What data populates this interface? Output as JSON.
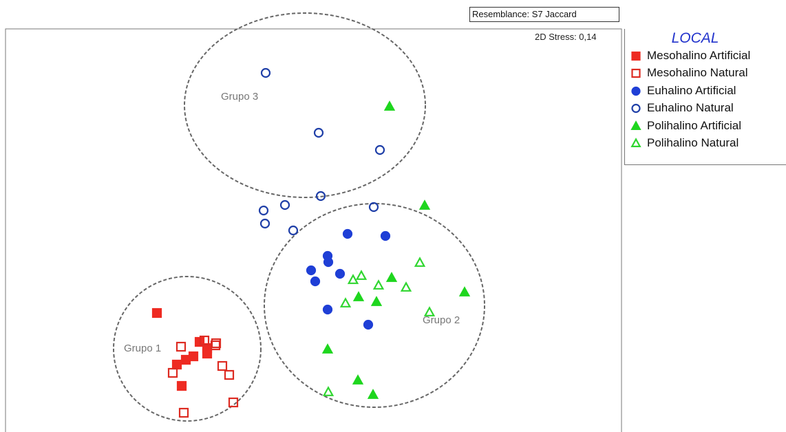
{
  "header": {
    "resemblance": "Resemblance: S7 Jaccard",
    "stress": "2D Stress: 0,14"
  },
  "legend": {
    "title": "LOCAL",
    "items": [
      {
        "label": "Mesohalino Artificial",
        "shape": "square",
        "filled": true,
        "color": "#ee2b22",
        "icon": "filled-square-icon"
      },
      {
        "label": "Mesohalino Natural",
        "shape": "square",
        "filled": false,
        "color": "#dd2b22",
        "icon": "open-square-icon"
      },
      {
        "label": "Euhalino Artificial",
        "shape": "circle",
        "filled": true,
        "color": "#1f3fd6",
        "icon": "filled-circle-icon"
      },
      {
        "label": "Euhalino Natural",
        "shape": "circle",
        "filled": false,
        "color": "#1f3fa8",
        "icon": "open-circle-icon"
      },
      {
        "label": "Polihalino Artificial",
        "shape": "triangle",
        "filled": true,
        "color": "#1ed61e",
        "icon": "filled-triangle-icon"
      },
      {
        "label": "Polihalino Natural",
        "shape": "triangle",
        "filled": false,
        "color": "#2fd62f",
        "icon": "open-triangle-icon"
      }
    ]
  },
  "chart_data": {
    "type": "scatter",
    "title": "",
    "xlabel": "",
    "ylabel": "",
    "grid": false,
    "legend_position": "right",
    "xlim": [
      0,
      890
    ],
    "ylim": [
      0,
      585
    ],
    "groups": [
      {
        "label": "Grupo 1",
        "center": [
          272,
          93
        ],
        "radii": [
          107,
          105
        ]
      },
      {
        "label": "Grupo 2",
        "center": [
          544,
          156
        ],
        "radii": [
          160,
          148
        ]
      },
      {
        "label": "Grupo 3",
        "center": [
          443,
          447
        ],
        "radii": [
          175,
          134
        ]
      }
    ],
    "series": [
      {
        "name": "Mesohalino Artificial",
        "shape": "square",
        "filled": true,
        "color": "#ee2b22",
        "x": [
          228,
          290,
          301,
          301,
          281,
          270,
          257,
          264
        ],
        "y": [
          145,
          103,
          94,
          86,
          82,
          77,
          70,
          39
        ]
      },
      {
        "name": "Mesohalino Natural",
        "shape": "square",
        "filled": false,
        "color": "#dd2b22",
        "x": [
          263,
          297,
          313,
          314,
          323,
          251,
          333,
          339,
          267
        ],
        "y": [
          96,
          105,
          98,
          101,
          68,
          58,
          55,
          15,
          0
        ]
      },
      {
        "name": "Euhalino Artificial",
        "shape": "circle",
        "filled": true,
        "color": "#1f3fd6",
        "x": [
          505,
          560,
          476,
          477,
          452,
          494,
          458,
          476,
          535
        ],
        "y": [
          260,
          257,
          228,
          219,
          207,
          202,
          191,
          150,
          128
        ]
      },
      {
        "name": "Euhalino Natural",
        "shape": "circle",
        "filled": false,
        "color": "#1f3fa8",
        "x": [
          386,
          463,
          552,
          466,
          414,
          543,
          383,
          385,
          426
        ],
        "y": [
          494,
          407,
          382,
          315,
          302,
          299,
          294,
          275,
          265
        ]
      },
      {
        "name": "Polihalino Artificial",
        "shape": "triangle",
        "filled": true,
        "color": "#1ed61e",
        "x": [
          566,
          617,
          569,
          675,
          521,
          547,
          476,
          520,
          542
        ],
        "y": [
          445,
          301,
          196,
          175,
          168,
          161,
          92,
          47,
          26
        ]
      },
      {
        "name": "Polihalino Natural",
        "shape": "triangle",
        "filled": false,
        "color": "#2fd62f",
        "x": [
          610,
          525,
          513,
          550,
          590,
          502,
          624,
          477
        ],
        "y": [
          218,
          199,
          193,
          185,
          182,
          159,
          146,
          30
        ]
      }
    ]
  }
}
